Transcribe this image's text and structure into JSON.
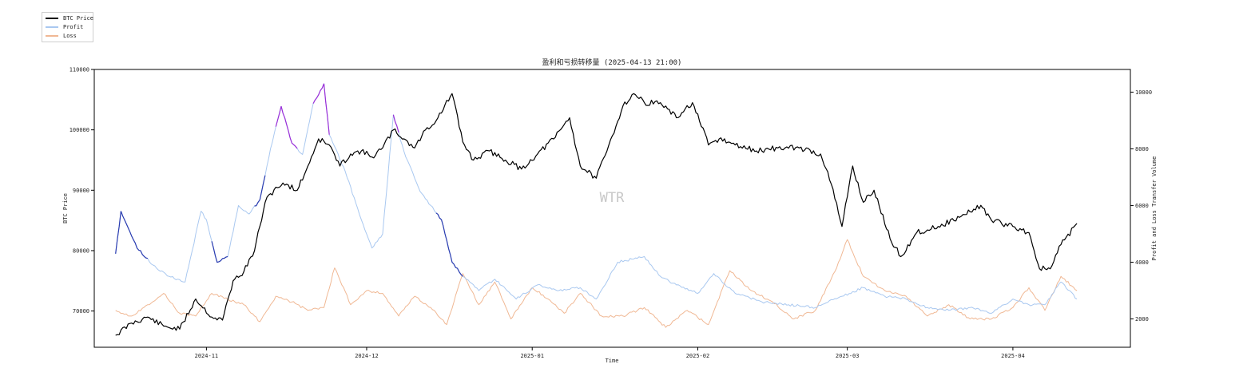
{
  "chart_data": {
    "type": "line",
    "title": "盈利和亏损转移量 (2025-04-13 21:00)",
    "xlabel": "Time",
    "ylabel": "BTC Price",
    "y2label": "Profit and Loss Transfer Volume",
    "watermark": "WTR",
    "legend": {
      "placement": "outside-top-left",
      "entries": [
        {
          "name": "BTC Price",
          "color": "#000000"
        },
        {
          "name": "Profit",
          "color": "#a9c8f0"
        },
        {
          "name": "Loss",
          "color": "#f0b894"
        }
      ]
    },
    "x_range": [
      "2024-10-11",
      "2025-04-23"
    ],
    "x_ticks": [
      "2024-11",
      "2024-12",
      "2025-01",
      "2025-02",
      "2025-03",
      "2025-04"
    ],
    "ylim": [
      64000,
      110000
    ],
    "y_ticks": [
      70000,
      80000,
      90000,
      100000,
      110000
    ],
    "y2lim": [
      1000,
      10800
    ],
    "y2_ticks": [
      2000,
      4000,
      6000,
      8000,
      10000
    ],
    "grid": false,
    "series": [
      {
        "name": "BTC Price",
        "axis": "left",
        "color": "#000000",
        "x": [
          "2024-10-15",
          "2024-10-18",
          "2024-10-21",
          "2024-10-24",
          "2024-10-27",
          "2024-10-30",
          "2024-11-02",
          "2024-11-04",
          "2024-11-06",
          "2024-11-08",
          "2024-11-10",
          "2024-11-12",
          "2024-11-14",
          "2024-11-16",
          "2024-11-18",
          "2024-11-20",
          "2024-11-22",
          "2024-11-24",
          "2024-11-26",
          "2024-11-28",
          "2024-11-30",
          "2024-12-02",
          "2024-12-04",
          "2024-12-06",
          "2024-12-08",
          "2024-12-10",
          "2024-12-12",
          "2024-12-14",
          "2024-12-17",
          "2024-12-19",
          "2024-12-21",
          "2024-12-24",
          "2024-12-27",
          "2024-12-30",
          "2025-01-02",
          "2025-01-05",
          "2025-01-08",
          "2025-01-10",
          "2025-01-13",
          "2025-01-15",
          "2025-01-18",
          "2025-01-20",
          "2025-01-22",
          "2025-01-25",
          "2025-01-28",
          "2025-01-31",
          "2025-02-03",
          "2025-02-05",
          "2025-02-08",
          "2025-02-12",
          "2025-02-16",
          "2025-02-20",
          "2025-02-24",
          "2025-02-26",
          "2025-02-28",
          "2025-03-02",
          "2025-03-04",
          "2025-03-06",
          "2025-03-09",
          "2025-03-11",
          "2025-03-14",
          "2025-03-18",
          "2025-03-22",
          "2025-03-26",
          "2025-03-28",
          "2025-04-01",
          "2025-04-04",
          "2025-04-06",
          "2025-04-08",
          "2025-04-10",
          "2025-04-13"
        ],
        "values": [
          66000,
          68000,
          69000,
          67500,
          67000,
          72000,
          69000,
          68500,
          75000,
          76500,
          80000,
          88000,
          90500,
          91000,
          90000,
          94000,
          98500,
          97500,
          94000,
          96000,
          96500,
          95500,
          97000,
          100000,
          98500,
          97000,
          100000,
          101500,
          106000,
          98000,
          95000,
          96500,
          95000,
          93500,
          96000,
          98500,
          102000,
          94000,
          92000,
          96500,
          104000,
          106000,
          104500,
          104500,
          102000,
          104500,
          97500,
          98500,
          97500,
          96500,
          97000,
          97000,
          96000,
          91000,
          84000,
          94000,
          88000,
          90000,
          82000,
          79000,
          83000,
          84000,
          85500,
          87500,
          85000,
          84000,
          83000,
          77000,
          77000,
          81000,
          84500
        ]
      },
      {
        "name": "Profit",
        "axis": "right",
        "color": "#a9c8f0",
        "x": [
          "2024-10-15",
          "2024-10-16",
          "2024-10-19",
          "2024-10-22",
          "2024-10-25",
          "2024-10-28",
          "2024-10-31",
          "2024-11-01",
          "2024-11-03",
          "2024-11-05",
          "2024-11-07",
          "2024-11-09",
          "2024-11-11",
          "2024-11-13",
          "2024-11-15",
          "2024-11-17",
          "2024-11-19",
          "2024-11-21",
          "2024-11-23",
          "2024-11-24",
          "2024-11-27",
          "2024-11-30",
          "2024-12-02",
          "2024-12-04",
          "2024-12-06",
          "2024-12-08",
          "2024-12-11",
          "2024-12-13",
          "2024-12-15",
          "2024-12-17",
          "2024-12-19",
          "2024-12-22",
          "2024-12-25",
          "2024-12-29",
          "2025-01-02",
          "2025-01-06",
          "2025-01-10",
          "2025-01-13",
          "2025-01-17",
          "2025-01-22",
          "2025-01-25",
          "2025-01-28",
          "2025-02-01",
          "2025-02-04",
          "2025-02-08",
          "2025-02-13",
          "2025-02-18",
          "2025-02-23",
          "2025-02-28",
          "2025-03-04",
          "2025-03-08",
          "2025-03-12",
          "2025-03-16",
          "2025-03-20",
          "2025-03-24",
          "2025-03-28",
          "2025-04-01",
          "2025-04-04",
          "2025-04-07",
          "2025-04-10",
          "2025-04-13"
        ],
        "values": [
          4300,
          5800,
          4500,
          3900,
          3500,
          3300,
          5800,
          5500,
          4000,
          4200,
          6000,
          5700,
          6200,
          8000,
          9500,
          8200,
          7800,
          9600,
          10300,
          8500,
          7200,
          5500,
          4500,
          5000,
          9200,
          7900,
          6500,
          6000,
          5500,
          4000,
          3500,
          3000,
          3400,
          2700,
          3200,
          3000,
          3100,
          2700,
          4000,
          4200,
          3500,
          3200,
          2900,
          3600,
          2900,
          2600,
          2500,
          2400,
          2800,
          3100,
          2800,
          2700,
          2400,
          2300,
          2400,
          2200,
          2700,
          2500,
          2500,
          3300,
          2700
        ]
      },
      {
        "name": "Loss",
        "axis": "right",
        "color": "#f0b894",
        "x": [
          "2024-10-15",
          "2024-10-18",
          "2024-10-21",
          "2024-10-24",
          "2024-10-27",
          "2024-10-30",
          "2024-11-02",
          "2024-11-05",
          "2024-11-08",
          "2024-11-11",
          "2024-11-14",
          "2024-11-17",
          "2024-11-20",
          "2024-11-23",
          "2024-11-25",
          "2024-11-28",
          "2024-12-01",
          "2024-12-04",
          "2024-12-07",
          "2024-12-10",
          "2024-12-13",
          "2024-12-16",
          "2024-12-19",
          "2024-12-22",
          "2024-12-25",
          "2024-12-28",
          "2025-01-01",
          "2025-01-04",
          "2025-01-07",
          "2025-01-10",
          "2025-01-14",
          "2025-01-18",
          "2025-01-22",
          "2025-01-26",
          "2025-01-30",
          "2025-02-03",
          "2025-02-07",
          "2025-02-11",
          "2025-02-15",
          "2025-02-19",
          "2025-02-23",
          "2025-02-27",
          "2025-03-01",
          "2025-03-04",
          "2025-03-08",
          "2025-03-12",
          "2025-03-16",
          "2025-03-20",
          "2025-03-24",
          "2025-03-28",
          "2025-04-01",
          "2025-04-04",
          "2025-04-07",
          "2025-04-10",
          "2025-04-13"
        ],
        "values": [
          2300,
          2100,
          2500,
          2900,
          2200,
          2100,
          2900,
          2700,
          2500,
          1900,
          2800,
          2600,
          2300,
          2400,
          3800,
          2500,
          3000,
          2900,
          2100,
          2800,
          2400,
          1800,
          3600,
          2500,
          3300,
          2000,
          3100,
          2700,
          2200,
          2900,
          2100,
          2100,
          2400,
          1700,
          2300,
          1800,
          3700,
          3000,
          2600,
          2000,
          2300,
          3800,
          4800,
          3500,
          3000,
          2800,
          2100,
          2500,
          2000,
          2000,
          2400,
          3100,
          2300,
          3500,
          3000
        ]
      }
    ],
    "highlights": [
      {
        "series": "Profit",
        "color": "#2a3cb0",
        "x": [
          "2024-10-15",
          "2024-10-21"
        ]
      },
      {
        "series": "Profit",
        "color": "#2a3cb0",
        "x": [
          "2024-11-02",
          "2024-11-05"
        ]
      },
      {
        "series": "Profit",
        "color": "#2a3cb0",
        "x": [
          "2024-11-10",
          "2024-11-12"
        ]
      },
      {
        "series": "Profit",
        "color": "#9a2fd8",
        "x": [
          "2024-11-14",
          "2024-11-18"
        ]
      },
      {
        "series": "Profit",
        "color": "#9a2fd8",
        "x": [
          "2024-11-21",
          "2024-11-24"
        ]
      },
      {
        "series": "Profit",
        "color": "#9a2fd8",
        "x": [
          "2024-12-06",
          "2024-12-07"
        ]
      },
      {
        "series": "Profit",
        "color": "#2a3cb0",
        "x": [
          "2024-12-14",
          "2024-12-19"
        ]
      }
    ]
  }
}
